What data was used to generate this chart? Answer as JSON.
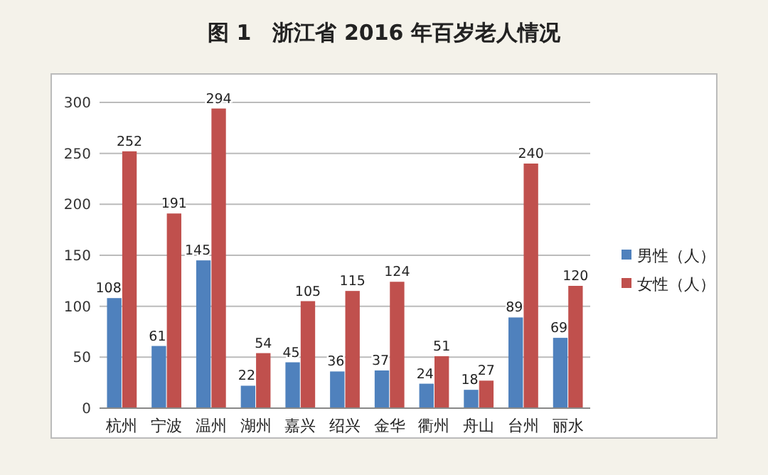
{
  "chart_data": {
    "type": "bar",
    "title": "图 1　浙江省 2016 年百岁老人情况",
    "categories": [
      "杭州",
      "宁波",
      "温州",
      "湖州",
      "嘉兴",
      "绍兴",
      "金华",
      "衢州",
      "舟山",
      "台州",
      "丽水"
    ],
    "series": [
      {
        "name": "男性（人）",
        "color": "#4f81bd",
        "values": [
          108,
          61,
          145,
          22,
          45,
          36,
          37,
          24,
          18,
          89,
          69
        ]
      },
      {
        "name": "女性（人）",
        "color": "#c0504d",
        "values": [
          252,
          191,
          294,
          54,
          105,
          115,
          124,
          51,
          27,
          240,
          120
        ]
      }
    ],
    "ylim": [
      0,
      300
    ],
    "yticks": [
      0,
      50,
      100,
      150,
      200,
      250,
      300
    ],
    "grid": "y",
    "legend": "right",
    "data_labels": true
  }
}
